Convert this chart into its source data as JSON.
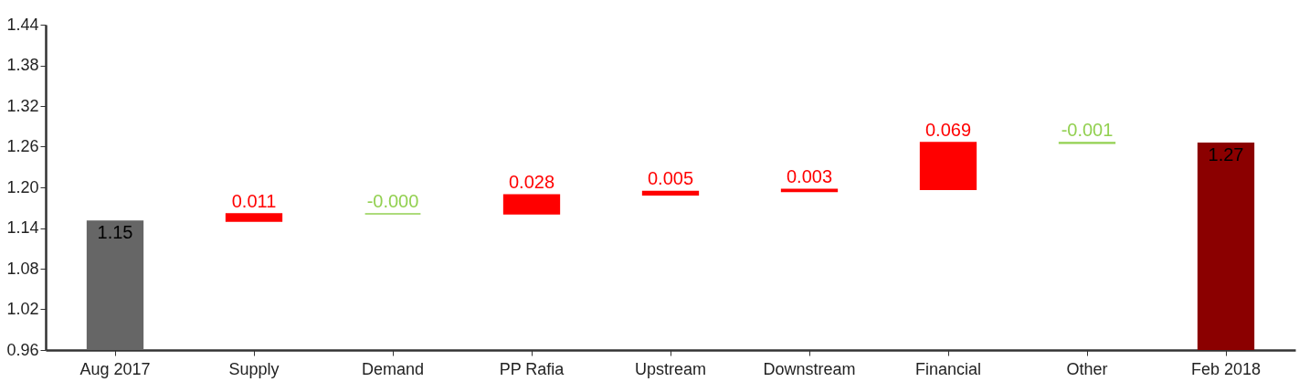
{
  "chart_data": {
    "type": "bar",
    "categories": [
      "Aug 2017",
      "Supply",
      "Demand",
      "PP Rafia",
      "Upstream",
      "Downstream",
      "Financial",
      "Other",
      "Feb 2018"
    ],
    "values": [
      1.15,
      0.011,
      0.0,
      0.028,
      0.005,
      0.003,
      0.069,
      -0.001,
      1.265
    ],
    "base": [
      null,
      1.15,
      1.161,
      1.161,
      1.189,
      1.194,
      1.197,
      1.266,
      null
    ],
    "colors": [
      "#666666",
      "#ff0000",
      "#92d050",
      "#ff0000",
      "#ff0000",
      "#ff0000",
      "#ff0000",
      "#92d050",
      "#8b0000"
    ],
    "value_labels": [
      "1.15",
      "0.011",
      "-0.000",
      "0.028",
      "0.005",
      "0.003",
      "0.069",
      "-0.001",
      "1.27"
    ],
    "ylim": [
      0.96,
      1.44
    ],
    "yticks": [
      0.96,
      1.02,
      1.08,
      1.14,
      {
        "value": 1.2,
        "label": "1.20"
      },
      1.26,
      1.32,
      1.38,
      1.44
    ],
    "grid": false
  }
}
